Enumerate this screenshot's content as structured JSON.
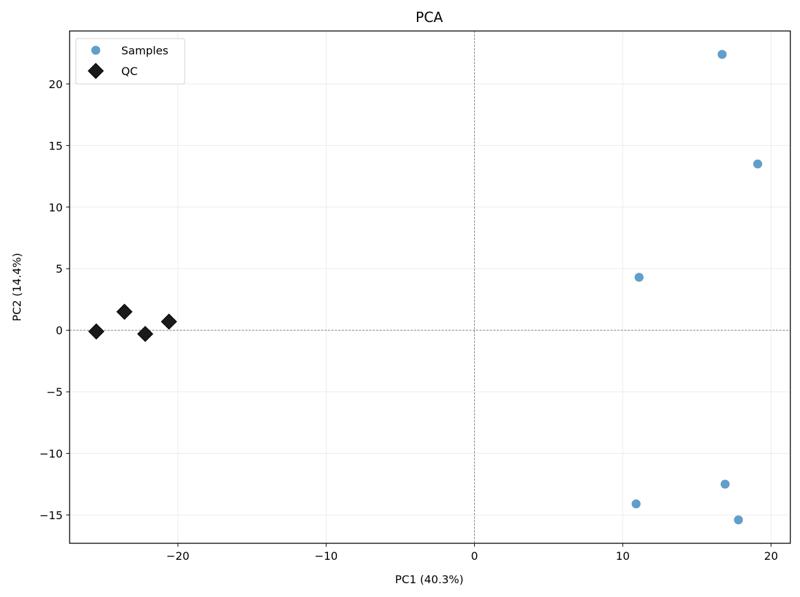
{
  "chart_data": {
    "type": "scatter",
    "title": "PCA",
    "xlabel": "PC1 (40.3%)",
    "ylabel": "PC2 (14.4%)",
    "xlim": [
      -27.3,
      21.3
    ],
    "ylim": [
      -17.3,
      24.3
    ],
    "xticks": [
      -20,
      -10,
      0,
      10,
      20
    ],
    "yticks": [
      -15,
      -10,
      -5,
      0,
      5,
      10,
      15,
      20
    ],
    "xtick_labels": [
      "−20",
      "−10",
      "0",
      "10",
      "20"
    ],
    "ytick_labels": [
      "−15",
      "−10",
      "−5",
      "0",
      "5",
      "10",
      "15",
      "20"
    ],
    "grid": true,
    "reference_lines": {
      "x": 0,
      "y": 0,
      "style": "dashed"
    },
    "legend_position": "top-left",
    "series": [
      {
        "name": "Samples",
        "marker": "circle",
        "color": "#5899c6",
        "points": [
          [
            16.7,
            22.4
          ],
          [
            19.1,
            13.5
          ],
          [
            11.1,
            4.3
          ],
          [
            16.9,
            -12.5
          ],
          [
            10.9,
            -14.1
          ],
          [
            17.8,
            -15.4
          ]
        ]
      },
      {
        "name": "QC",
        "marker": "diamond",
        "color": "#1a1a1a",
        "points": [
          [
            -25.5,
            -0.1
          ],
          [
            -23.6,
            1.5
          ],
          [
            -22.2,
            -0.3
          ],
          [
            -20.6,
            0.7
          ]
        ]
      }
    ]
  }
}
